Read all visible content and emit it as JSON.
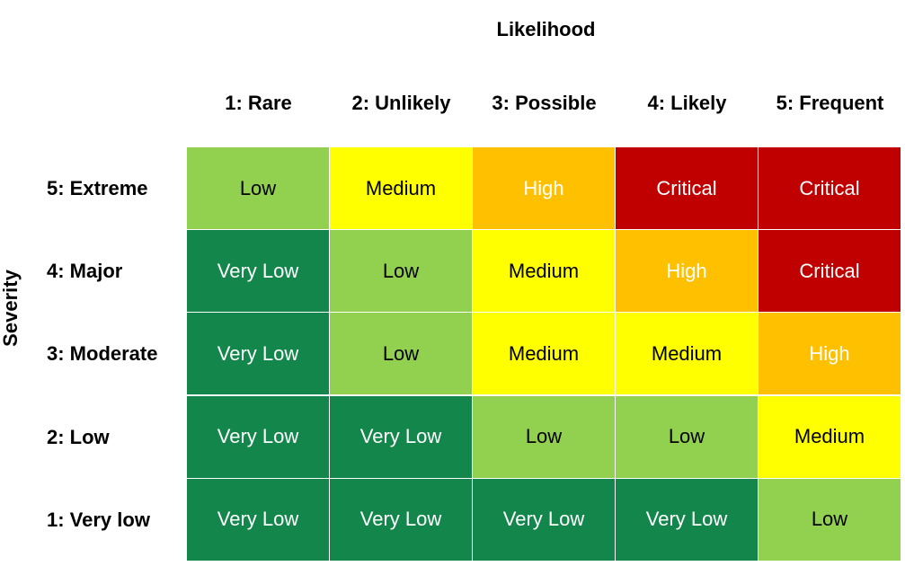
{
  "x_axis_title": "Likelihood",
  "y_axis_title": "Severity",
  "columns": [
    "1: Rare",
    "2: Unlikely",
    "3: Possible",
    "4: Likely",
    "5: Frequent"
  ],
  "rows": [
    {
      "label": "5: Extreme",
      "cells": [
        "Low",
        "Medium",
        "High",
        "Critical",
        "Critical"
      ]
    },
    {
      "label": "4: Major",
      "cells": [
        "Very Low",
        "Low",
        "Medium",
        "High",
        "Critical"
      ]
    },
    {
      "label": "3: Moderate",
      "cells": [
        "Very Low",
        "Low",
        "Medium",
        "Medium",
        "High"
      ]
    },
    {
      "label": "2: Low",
      "cells": [
        "Very Low",
        "Very Low",
        "Low",
        "Low",
        "Medium"
      ]
    },
    {
      "label": "1: Very low",
      "cells": [
        "Very Low",
        "Very Low",
        "Very Low",
        "Very Low",
        "Low"
      ]
    }
  ],
  "level_colors": {
    "Very Low": {
      "fill": "#13874b",
      "text": "#ffffff"
    },
    "Low": {
      "fill": "#92d050",
      "text": "#000000"
    },
    "Medium": {
      "fill": "#ffff00",
      "text": "#000000"
    },
    "High": {
      "fill": "#ffc000",
      "text": "#ffffff"
    },
    "Critical": {
      "fill": "#c00000",
      "text": "#ffffff"
    }
  }
}
